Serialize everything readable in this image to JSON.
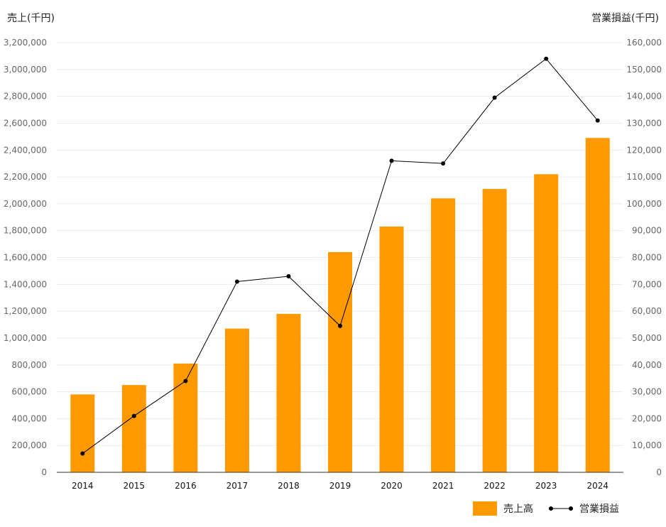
{
  "chart_data": {
    "type": "bar",
    "ylabel": "売上(千円)",
    "y2label": "営業損益(千円)",
    "categories": [
      "2014",
      "2015",
      "2016",
      "2017",
      "2018",
      "2019",
      "2020",
      "2021",
      "2022",
      "2023",
      "2024"
    ],
    "ylim": [
      0,
      3200000
    ],
    "y2lim": [
      0,
      160000
    ],
    "yticks": [
      "0",
      "200,000",
      "400,000",
      "600,000",
      "800,000",
      "1,000,000",
      "1,200,000",
      "1,400,000",
      "1,600,000",
      "1,800,000",
      "2,000,000",
      "2,200,000",
      "2,400,000",
      "2,600,000",
      "2,800,000",
      "3,000,000",
      "3,200,000"
    ],
    "y2ticks": [
      "0",
      "10,000",
      "20,000",
      "30,000",
      "40,000",
      "50,000",
      "60,000",
      "70,000",
      "80,000",
      "90,000",
      "100,000",
      "110,000",
      "120,000",
      "130,000",
      "140,000",
      "150,000",
      "160,000"
    ],
    "series": [
      {
        "name": "売上高",
        "type": "bar",
        "axis": "left",
        "color": "#FF9900",
        "values": [
          580000,
          650000,
          810000,
          1070000,
          1180000,
          1640000,
          1830000,
          2040000,
          2110000,
          2220000,
          2490000
        ]
      },
      {
        "name": "営業損益",
        "type": "line",
        "axis": "right",
        "color": "#000000",
        "values": [
          7000,
          21000,
          34000,
          71000,
          73000,
          54500,
          116000,
          115000,
          139500,
          154000,
          131000
        ]
      }
    ],
    "grid": true,
    "legend": "bottom-right"
  }
}
